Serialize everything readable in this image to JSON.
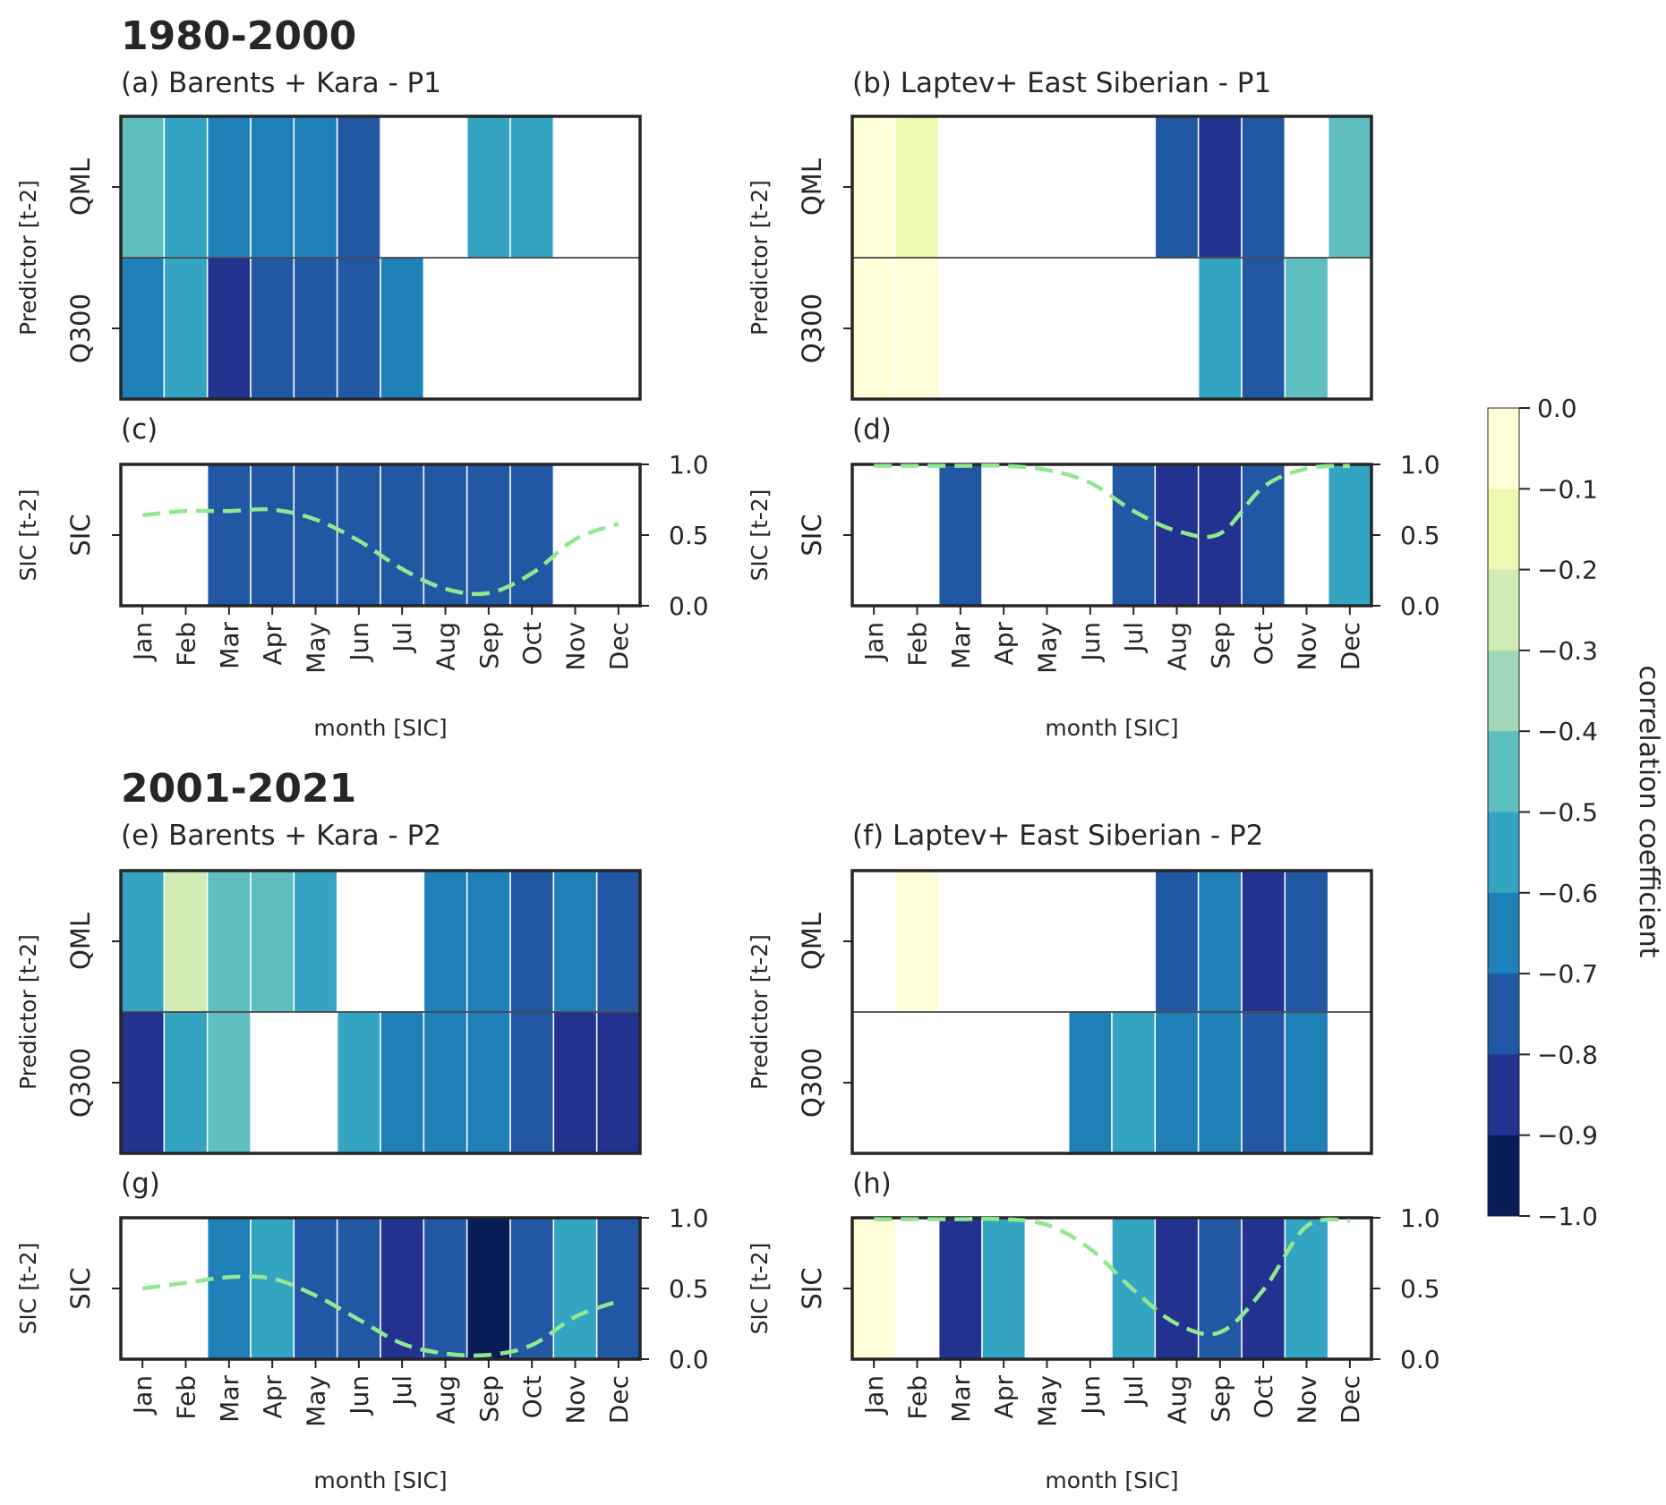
{
  "months": [
    "Jan",
    "Feb",
    "Mar",
    "Apr",
    "May",
    "Jun",
    "Jul",
    "Aug",
    "Sep",
    "Oct",
    "Nov",
    "Dec"
  ],
  "periods": [
    "1980-2000",
    "2001-2021"
  ],
  "labels": {
    "predictor_ylabel": "Predictor [t-2]",
    "sic_ylabel": "SIC [t-2]",
    "xlabel": "month [SIC]",
    "row_qml": "QML",
    "row_q300": "Q300",
    "row_sic": "SIC",
    "colorbar_label": "correlation coefficient"
  },
  "sic_axis_ticks": [
    "0.0",
    "0.5",
    "1.0"
  ],
  "colorbar": {
    "ticks": [
      "0.0",
      "−0.1",
      "−0.2",
      "−0.3",
      "−0.4",
      "−0.5",
      "−0.6",
      "−0.7",
      "−0.8",
      "−0.9",
      "−1.0"
    ],
    "colors": [
      "#ffffd9",
      "#edf8b1",
      "#d0ecb3",
      "#9ed8b8",
      "#5fbfc0",
      "#33a5c2",
      "#1f80b8",
      "#2257a4",
      "#23318f",
      "#081d58"
    ]
  },
  "chart_data": [
    {
      "type": "heatmap",
      "id": "a",
      "title": "(a) Barents + Kara - P1",
      "rows": [
        "QML",
        "Q300"
      ],
      "columns": [
        "Jan",
        "Feb",
        "Mar",
        "Apr",
        "May",
        "Jun",
        "Jul",
        "Aug",
        "Sep",
        "Oct",
        "Nov",
        "Dec"
      ],
      "values": [
        [
          -0.45,
          -0.55,
          -0.65,
          -0.65,
          -0.65,
          -0.75,
          null,
          null,
          -0.55,
          -0.55,
          null,
          null
        ],
        [
          -0.65,
          -0.55,
          -0.85,
          -0.75,
          -0.75,
          -0.75,
          -0.65,
          null,
          null,
          null,
          null,
          null
        ]
      ],
      "color_range": [
        -1.0,
        0.0
      ]
    },
    {
      "type": "heatmap",
      "id": "b",
      "title": "(b) Laptev+ East Siberian - P1",
      "rows": [
        "QML",
        "Q300"
      ],
      "columns": [
        "Jan",
        "Feb",
        "Mar",
        "Apr",
        "May",
        "Jun",
        "Jul",
        "Aug",
        "Sep",
        "Oct",
        "Nov",
        "Dec"
      ],
      "values": [
        [
          -0.05,
          -0.15,
          null,
          null,
          null,
          null,
          null,
          -0.75,
          -0.85,
          -0.75,
          null,
          -0.45
        ],
        [
          -0.05,
          -0.05,
          null,
          null,
          null,
          null,
          null,
          null,
          -0.55,
          -0.75,
          -0.45,
          null
        ]
      ],
      "color_range": [
        -1.0,
        0.0
      ]
    },
    {
      "type": "heatmap+line",
      "id": "c",
      "title": "(c)",
      "rows": [
        "SIC"
      ],
      "columns": [
        "Jan",
        "Feb",
        "Mar",
        "Apr",
        "May",
        "Jun",
        "Jul",
        "Aug",
        "Sep",
        "Oct",
        "Nov",
        "Dec"
      ],
      "values": [
        [
          null,
          null,
          -0.75,
          -0.75,
          -0.75,
          -0.75,
          -0.75,
          -0.75,
          -0.75,
          -0.75,
          null,
          null
        ]
      ],
      "line": {
        "name": "SIC climatology",
        "style": "dashed",
        "color": "#90e890",
        "y": [
          0.64,
          0.67,
          0.67,
          0.68,
          0.61,
          0.46,
          0.26,
          0.12,
          0.09,
          0.23,
          0.47,
          0.58
        ]
      },
      "ylim": [
        0.0,
        1.0
      ],
      "ylabel": "SIC [t-2]",
      "xlabel": "month [SIC]"
    },
    {
      "type": "heatmap+line",
      "id": "d",
      "title": "(d)",
      "rows": [
        "SIC"
      ],
      "columns": [
        "Jan",
        "Feb",
        "Mar",
        "Apr",
        "May",
        "Jun",
        "Jul",
        "Aug",
        "Sep",
        "Oct",
        "Nov",
        "Dec"
      ],
      "values": [
        [
          null,
          null,
          -0.75,
          null,
          null,
          null,
          -0.75,
          -0.85,
          -0.85,
          -0.75,
          null,
          -0.55
        ]
      ],
      "line": {
        "name": "SIC climatology",
        "style": "dashed",
        "color": "#90e890",
        "y": [
          0.99,
          0.99,
          0.99,
          0.99,
          0.96,
          0.87,
          0.67,
          0.53,
          0.51,
          0.84,
          0.97,
          0.99
        ]
      },
      "ylim": [
        0.0,
        1.0
      ],
      "ylabel": "SIC [t-2]",
      "xlabel": "month [SIC]"
    },
    {
      "type": "heatmap",
      "id": "e",
      "title": "(e) Barents + Kara - P2",
      "rows": [
        "QML",
        "Q300"
      ],
      "columns": [
        "Jan",
        "Feb",
        "Mar",
        "Apr",
        "May",
        "Jun",
        "Jul",
        "Aug",
        "Sep",
        "Oct",
        "Nov",
        "Dec"
      ],
      "values": [
        [
          -0.55,
          -0.25,
          -0.45,
          -0.45,
          -0.55,
          null,
          null,
          -0.65,
          -0.65,
          -0.75,
          -0.65,
          -0.75
        ],
        [
          -0.85,
          -0.55,
          -0.45,
          null,
          null,
          -0.55,
          -0.65,
          -0.65,
          -0.65,
          -0.75,
          -0.85,
          -0.85
        ]
      ],
      "color_range": [
        -1.0,
        0.0
      ]
    },
    {
      "type": "heatmap",
      "id": "f",
      "title": "(f) Laptev+ East Siberian - P2",
      "rows": [
        "QML",
        "Q300"
      ],
      "columns": [
        "Jan",
        "Feb",
        "Mar",
        "Apr",
        "May",
        "Jun",
        "Jul",
        "Aug",
        "Sep",
        "Oct",
        "Nov",
        "Dec"
      ],
      "values": [
        [
          null,
          -0.05,
          null,
          null,
          null,
          null,
          null,
          -0.75,
          -0.65,
          -0.85,
          -0.75,
          null
        ],
        [
          null,
          null,
          null,
          null,
          null,
          -0.65,
          -0.55,
          -0.65,
          -0.65,
          -0.75,
          -0.65,
          null
        ]
      ],
      "color_range": [
        -1.0,
        0.0
      ]
    },
    {
      "type": "heatmap+line",
      "id": "g",
      "title": "(g)",
      "rows": [
        "SIC"
      ],
      "columns": [
        "Jan",
        "Feb",
        "Mar",
        "Apr",
        "May",
        "Jun",
        "Jul",
        "Aug",
        "Sep",
        "Oct",
        "Nov",
        "Dec"
      ],
      "values": [
        [
          null,
          null,
          -0.65,
          -0.55,
          -0.75,
          -0.75,
          -0.85,
          -0.75,
          -0.95,
          -0.75,
          -0.55,
          -0.75
        ]
      ],
      "line": {
        "name": "SIC climatology",
        "style": "dashed",
        "color": "#90e890",
        "y": [
          0.5,
          0.54,
          0.58,
          0.57,
          0.45,
          0.28,
          0.11,
          0.04,
          0.03,
          0.1,
          0.3,
          0.41
        ]
      },
      "ylim": [
        0.0,
        1.0
      ],
      "ylabel": "SIC [t-2]",
      "xlabel": "month [SIC]"
    },
    {
      "type": "heatmap+line",
      "id": "h",
      "title": "(h)",
      "rows": [
        "SIC"
      ],
      "columns": [
        "Jan",
        "Feb",
        "Mar",
        "Apr",
        "May",
        "Jun",
        "Jul",
        "Aug",
        "Sep",
        "Oct",
        "Nov",
        "Dec"
      ],
      "values": [
        [
          -0.05,
          null,
          -0.85,
          -0.55,
          null,
          null,
          -0.55,
          -0.85,
          -0.75,
          -0.85,
          -0.55,
          null
        ]
      ],
      "line": {
        "name": "SIC climatology",
        "style": "dashed",
        "color": "#90e890",
        "y": [
          0.99,
          0.99,
          0.99,
          0.99,
          0.95,
          0.78,
          0.49,
          0.25,
          0.19,
          0.49,
          0.94,
          0.98
        ]
      },
      "ylim": [
        0.0,
        1.0
      ],
      "ylabel": "SIC [t-2]",
      "xlabel": "month [SIC]"
    }
  ]
}
